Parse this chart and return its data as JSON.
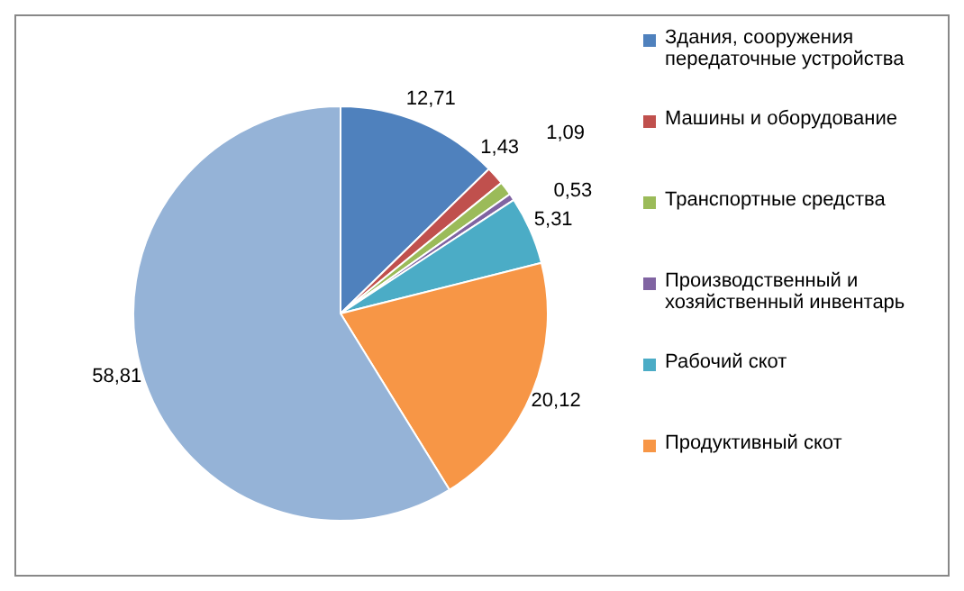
{
  "chart_data": {
    "type": "pie",
    "categories": [
      "Здания, сооружения передаточные устройства",
      "Машины и оборудование",
      "Транспортные средства",
      "Производственный и хозяйственный инвентарь",
      "Рабочий скот",
      "Продуктивный скот",
      null
    ],
    "values": [
      12.71,
      1.43,
      1.09,
      0.53,
      5.31,
      20.12,
      58.81
    ],
    "value_labels": [
      "12,71",
      "1,43",
      "1,09",
      "0,53",
      "5,31",
      "20,12",
      "58,81"
    ],
    "colors": [
      "#4f81bd",
      "#c0504d",
      "#9bbb59",
      "#8064a2",
      "#4bacc6",
      "#f79646",
      "#95b3d7"
    ],
    "legend": "right"
  }
}
